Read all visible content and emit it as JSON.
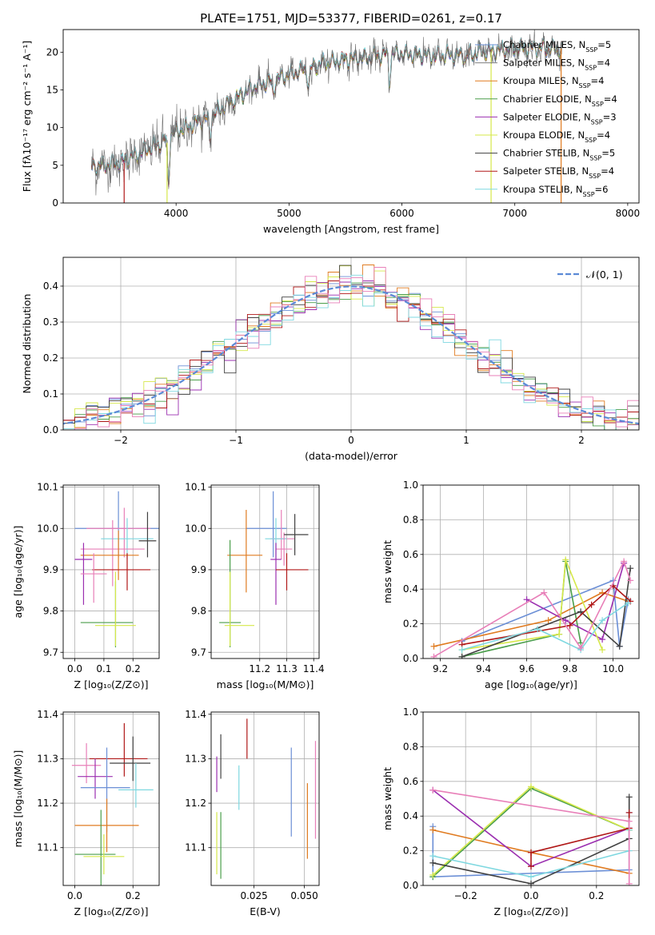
{
  "chart_data": [
    {
      "id": "spectrum",
      "type": "line",
      "title": "PLATE=1751, MJD=53377, FIBERID=0261, z=0.17",
      "xlabel": "wavelength [Angstrom, rest frame]",
      "ylabel": "Flux [fλ10⁻¹⁷ erg cm⁻² s⁻¹ A⁻¹]",
      "xlim": [
        3000,
        8100
      ],
      "ylim": [
        0,
        23
      ],
      "xticks": [
        4000,
        5000,
        6000,
        7000,
        8000
      ],
      "yticks": [
        0,
        5,
        10,
        15,
        20
      ],
      "grid": false,
      "legend_position": "top-right",
      "continuum": [
        [
          3250,
          4.8
        ],
        [
          3500,
          5.3
        ],
        [
          3700,
          6.8
        ],
        [
          3850,
          7.8
        ],
        [
          4000,
          9.5
        ],
        [
          4100,
          10.0
        ],
        [
          4300,
          11.5
        ],
        [
          4500,
          13.5
        ],
        [
          4700,
          15.5
        ],
        [
          4900,
          16.5
        ],
        [
          5100,
          17.5
        ],
        [
          5300,
          18.5
        ],
        [
          5500,
          19.0
        ],
        [
          5700,
          19.3
        ],
        [
          5900,
          19.8
        ],
        [
          6100,
          19.7
        ],
        [
          6300,
          19.5
        ],
        [
          6500,
          19.6
        ],
        [
          6700,
          20.0
        ],
        [
          7000,
          20.5
        ],
        [
          7200,
          20.6
        ],
        [
          7420,
          20.3
        ]
      ],
      "absorption_features": [
        [
          3933,
          6.0
        ],
        [
          4300,
          3.0
        ],
        [
          4861,
          2.0
        ],
        [
          5175,
          2.5
        ],
        [
          5890,
          3.5
        ],
        [
          6563,
          0.8
        ]
      ],
      "series": [
        {
          "name": "Chabrier MILES, N<sub>SSP</sub>=5",
          "color": "#6b8fd6"
        },
        {
          "name": "Salpeter MILES, N<sub>SSP</sub>=4",
          "color": "#7f7f7f"
        },
        {
          "name": "Kroupa MILES, N<sub>SSP</sub>=4",
          "color": "#e07b20"
        },
        {
          "name": "Chabrier ELODIE, N<sub>SSP</sub>=4",
          "color": "#4a9e4a"
        },
        {
          "name": "Salpeter ELODIE, N<sub>SSP</sub>=3",
          "color": "#9b2fb0"
        },
        {
          "name": "Kroupa ELODIE, N<sub>SSP</sub>=4",
          "color": "#d6e84a"
        },
        {
          "name": "Chabrier STELIB, N<sub>SSP</sub>=5",
          "color": "#404040"
        },
        {
          "name": "Salpeter STELIB, N<sub>SSP</sub>=4",
          "color": "#b01818"
        },
        {
          "name": "Kroupa STELIB, N<sub>SSP</sub>=6",
          "color": "#7fd8e0"
        }
      ],
      "edge_lines": [
        {
          "x": 3540,
          "y0": 0,
          "y1": 5.3,
          "color": "#b01818"
        },
        {
          "x": 3920,
          "y0": 0,
          "y1": 8,
          "color": "#d6e84a"
        },
        {
          "x": 6790,
          "y0": 0,
          "y1": 20,
          "color": "#d6e84a"
        },
        {
          "x": 7410,
          "y0": 0,
          "y1": 20.5,
          "color": "#e07b20"
        }
      ]
    },
    {
      "id": "residuals",
      "type": "histogram",
      "xlabel": "(data-model)/error",
      "ylabel": "Normed distribution",
      "xlim": [
        -2.5,
        2.5
      ],
      "ylim": [
        0,
        0.48
      ],
      "xticks": [
        -2,
        -1,
        0,
        1,
        2
      ],
      "yticks": [
        0.0,
        0.1,
        0.2,
        0.3,
        0.4
      ],
      "grid": true,
      "legend_position": "top-right",
      "reference_label": "𝒩(0, 1)",
      "reference_color": "#5b8ad6",
      "bin_width": 0.1,
      "hist_colors": [
        "#6b8fd6",
        "#e07b20",
        "#4a9e4a",
        "#9b2fb0",
        "#d6e84a",
        "#404040",
        "#b01818",
        "#7fd8e0",
        "#e87fb8"
      ]
    },
    {
      "id": "age-vs-Z",
      "type": "errorbar",
      "xlabel": "Z [log₁₀(Z/Z⊙)]",
      "ylabel": "age  [log₁₀(age/yr)]",
      "xlim": [
        -0.04,
        0.29
      ],
      "ylim": [
        9.685,
        10.105
      ],
      "xticks": [
        0.0,
        0.1,
        0.2
      ],
      "yticks": [
        9.7,
        9.8,
        9.9,
        10.0,
        10.1
      ],
      "grid": true,
      "points": [
        {
          "x": 0.15,
          "xerr": [
            0.15,
            0.15
          ],
          "y": 10.0,
          "yerr": [
            0.07,
            0.09
          ],
          "color": "#6b8fd6"
        },
        {
          "x": 0.17,
          "xerr": [
            0.13,
            0.09
          ],
          "y": 10.0,
          "yerr": [
            0.07,
            0.05
          ],
          "color": "#e87fb8"
        },
        {
          "x": 0.18,
          "xerr": [
            0.09,
            0.09
          ],
          "y": 9.975,
          "yerr": [
            0.05,
            0.05
          ],
          "color": "#7fd8e0"
        },
        {
          "x": 0.13,
          "xerr": [
            0.11,
            0.11
          ],
          "y": 9.95,
          "yerr": [
            0.09,
            0.07
          ],
          "color": "#e87fb8"
        },
        {
          "x": 0.15,
          "xerr": [
            0.13,
            0.07
          ],
          "y": 9.935,
          "yerr": [
            0.06,
            0.06
          ],
          "color": "#e07b20"
        },
        {
          "x": 0.03,
          "xerr": [
            0.03,
            0.03
          ],
          "y": 9.925,
          "yerr": [
            0.11,
            0.04
          ],
          "color": "#9b2fb0"
        },
        {
          "x": 0.18,
          "xerr": [
            0.12,
            0.08
          ],
          "y": 9.9,
          "yerr": [
            0.05,
            0.04
          ],
          "color": "#b01818"
        },
        {
          "x": 0.25,
          "xerr": [
            0.03,
            0.03
          ],
          "y": 9.97,
          "yerr": [
            0.04,
            0.07
          ],
          "color": "#404040"
        },
        {
          "x": 0.065,
          "xerr": [
            0.045,
            0.045
          ],
          "y": 9.89,
          "yerr": [
            0.07,
            0.05
          ],
          "color": "#e87fb8"
        },
        {
          "x": 0.14,
          "xerr": [
            0.12,
            0.06
          ],
          "y": 9.772,
          "yerr": [
            0.06,
            0.1
          ],
          "color": "#4a9e4a"
        },
        {
          "x": 0.14,
          "xerr": [
            0.07,
            0.07
          ],
          "y": 9.765,
          "yerr": [
            0.05,
            0.13
          ],
          "color": "#d6e84a"
        }
      ]
    },
    {
      "id": "age-vs-mass",
      "type": "errorbar",
      "xlabel": "mass [log₁₀(M/M⊙)]",
      "ylabel": "",
      "xlim": [
        11.02,
        11.42
      ],
      "ylim": [
        9.685,
        10.105
      ],
      "xticks": [
        11.2,
        11.3,
        11.4
      ],
      "yticks": [
        9.7,
        9.8,
        9.9,
        10.0,
        10.1
      ],
      "grid": true,
      "points": [
        {
          "x": 11.25,
          "xerr": [
            0.1,
            0.05
          ],
          "y": 10.0,
          "yerr": [
            0.07,
            0.09
          ],
          "color": "#6b8fd6"
        },
        {
          "x": 11.28,
          "xerr": [
            0.04,
            0.05
          ],
          "y": 9.975,
          "yerr": [
            0.05,
            0.07
          ],
          "color": "#e87fb8"
        },
        {
          "x": 11.26,
          "xerr": [
            0.04,
            0.04
          ],
          "y": 9.975,
          "yerr": [
            0.05,
            0.05
          ],
          "color": "#7fd8e0"
        },
        {
          "x": 11.29,
          "xerr": [
            0.03,
            0.03
          ],
          "y": 9.95,
          "yerr": [
            0.04,
            0.04
          ],
          "color": "#e87fb8"
        },
        {
          "x": 11.15,
          "xerr": [
            0.07,
            0.06
          ],
          "y": 9.935,
          "yerr": [
            0.09,
            0.11
          ],
          "color": "#e07b20"
        },
        {
          "x": 11.26,
          "xerr": [
            0.02,
            0.02
          ],
          "y": 9.925,
          "yerr": [
            0.11,
            0.04
          ],
          "color": "#9b2fb0"
        },
        {
          "x": 11.3,
          "xerr": [
            0.04,
            0.08
          ],
          "y": 9.9,
          "yerr": [
            0.05,
            0.04
          ],
          "color": "#b01818"
        },
        {
          "x": 11.33,
          "xerr": [
            0.04,
            0.05
          ],
          "y": 9.985,
          "yerr": [
            0.05,
            0.05
          ],
          "color": "#404040"
        },
        {
          "x": 11.09,
          "xerr": [
            0.04,
            0.04
          ],
          "y": 9.772,
          "yerr": [
            0.06,
            0.2
          ],
          "color": "#4a9e4a"
        },
        {
          "x": 11.09,
          "xerr": [
            0.02,
            0.09
          ],
          "y": 9.765,
          "yerr": [
            0.05,
            0.13
          ],
          "color": "#d6e84a"
        }
      ]
    },
    {
      "id": "weights-vs-age",
      "type": "line",
      "xlabel": "age  [log₁₀(age/yr)]",
      "ylabel": "mass weight",
      "xlim": [
        9.12,
        10.12
      ],
      "ylim": [
        0,
        1
      ],
      "xticks": [
        9.2,
        9.4,
        9.6,
        9.8,
        10.0
      ],
      "yticks": [
        0.0,
        0.2,
        0.4,
        0.6,
        0.8,
        1.0
      ],
      "grid": true,
      "series": [
        {
          "color": "#6b8fd6",
          "x": [
            9.3,
            10.0,
            10.03,
            10.07
          ],
          "y": [
            0.1,
            0.45,
            0.07,
            0.34
          ]
        },
        {
          "color": "#e07b20",
          "x": [
            9.17,
            9.7,
            9.95,
            10.07
          ],
          "y": [
            0.07,
            0.22,
            0.38,
            0.33
          ]
        },
        {
          "color": "#4a9e4a",
          "x": [
            9.3,
            9.75,
            9.78,
            9.85
          ],
          "y": [
            0.01,
            0.14,
            0.56,
            0.09
          ]
        },
        {
          "color": "#9b2fb0",
          "x": [
            9.6,
            9.78,
            9.95,
            10.05
          ],
          "y": [
            0.34,
            0.22,
            0.11,
            0.55
          ]
        },
        {
          "color": "#d6e84a",
          "x": [
            9.3,
            9.75,
            9.78,
            9.95
          ],
          "y": [
            0.05,
            0.14,
            0.57,
            0.05
          ]
        },
        {
          "color": "#404040",
          "x": [
            9.3,
            9.85,
            10.03,
            10.08
          ],
          "y": [
            0.01,
            0.27,
            0.07,
            0.52
          ]
        },
        {
          "color": "#b01818",
          "x": [
            9.3,
            9.8,
            9.9,
            10.0,
            10.08
          ],
          "y": [
            0.08,
            0.19,
            0.31,
            0.42,
            0.33
          ]
        },
        {
          "color": "#7fd8e0",
          "x": [
            9.3,
            9.65,
            9.85,
            9.95,
            10.07
          ],
          "y": [
            0.05,
            0.17,
            0.05,
            0.22,
            0.32
          ]
        },
        {
          "color": "#e87fb8",
          "x": [
            9.17,
            9.68,
            9.85,
            10.05,
            10.08
          ],
          "y": [
            0.01,
            0.38,
            0.06,
            0.56,
            0.45
          ]
        }
      ]
    },
    {
      "id": "mass-vs-Z",
      "type": "errorbar",
      "xlabel": "Z [log₁₀(Z/Z⊙)]",
      "ylabel": "mass [log₁₀(M/M⊙)]",
      "xlim": [
        -0.04,
        0.29
      ],
      "ylim": [
        11.015,
        11.405
      ],
      "xticks": [
        0.0,
        0.2
      ],
      "yticks": [
        11.1,
        11.2,
        11.3,
        11.4
      ],
      "grid": true,
      "points": [
        {
          "x": 0.17,
          "xerr": [
            0.12,
            0.08
          ],
          "y": 11.3,
          "yerr": [
            0.04,
            0.08
          ],
          "color": "#b01818"
        },
        {
          "x": 0.2,
          "xerr": [
            0.08,
            0.06
          ],
          "y": 11.29,
          "yerr": [
            0.04,
            0.06
          ],
          "color": "#404040"
        },
        {
          "x": 0.04,
          "xerr": [
            0.05,
            0.05
          ],
          "y": 11.285,
          "yerr": [
            0.04,
            0.05
          ],
          "color": "#e87fb8"
        },
        {
          "x": 0.07,
          "xerr": [
            0.06,
            0.06
          ],
          "y": 11.26,
          "yerr": [
            0.05,
            0.04
          ],
          "color": "#9b2fb0"
        },
        {
          "x": 0.11,
          "xerr": [
            0.09,
            0.08
          ],
          "y": 11.235,
          "yerr": [
            0.1,
            0.09
          ],
          "color": "#6b8fd6"
        },
        {
          "x": 0.21,
          "xerr": [
            0.06,
            0.06
          ],
          "y": 11.23,
          "yerr": [
            0.04,
            0.06
          ],
          "color": "#7fd8e0"
        },
        {
          "x": 0.11,
          "xerr": [
            0.11,
            0.11
          ],
          "y": 11.15,
          "yerr": [
            0.06,
            0.06
          ],
          "color": "#e07b20"
        },
        {
          "x": 0.09,
          "xerr": [
            0.09,
            0.05
          ],
          "y": 11.085,
          "yerr": [
            0.07,
            0.1
          ],
          "color": "#4a9e4a"
        },
        {
          "x": 0.1,
          "xerr": [
            0.07,
            0.07
          ],
          "y": 11.08,
          "yerr": [
            0.04,
            0.05
          ],
          "color": "#d6e84a"
        }
      ]
    },
    {
      "id": "mass-vs-ebv",
      "type": "errorbar",
      "xlabel": "E(B-V)",
      "ylabel": "",
      "xlim": [
        0.0037,
        0.0573
      ],
      "ylim": [
        11.015,
        11.405
      ],
      "xticks": [
        0.025,
        0.05
      ],
      "yticks": [
        11.1,
        11.2,
        11.3,
        11.4
      ],
      "grid": true,
      "points": [
        {
          "x": 0.0065,
          "y": 11.265,
          "yerr": [
            0.04,
            0.04
          ],
          "color": "#9b2fb0"
        },
        {
          "x": 0.0065,
          "y": 11.11,
          "yerr": [
            0.07,
            0.07
          ],
          "color": "#d6e84a"
        },
        {
          "x": 0.0085,
          "y": 11.305,
          "yerr": [
            0.05,
            0.05
          ],
          "color": "#404040"
        },
        {
          "x": 0.0085,
          "y": 11.1,
          "yerr": [
            0.07,
            0.08
          ],
          "color": "#4a9e4a"
        },
        {
          "x": 0.0175,
          "y": 11.235,
          "yerr": [
            0.05,
            0.05
          ],
          "color": "#7fd8e0"
        },
        {
          "x": 0.0215,
          "y": 11.34,
          "yerr": [
            0.04,
            0.05
          ],
          "color": "#b01818"
        },
        {
          "x": 0.0435,
          "y": 11.225,
          "yerr": [
            0.1,
            0.1
          ],
          "color": "#6b8fd6"
        },
        {
          "x": 0.0515,
          "y": 11.155,
          "yerr": [
            0.08,
            0.09
          ],
          "color": "#e07b20"
        },
        {
          "x": 0.0555,
          "y": 11.23,
          "yerr": [
            0.11,
            0.11
          ],
          "color": "#e87fb8"
        }
      ]
    },
    {
      "id": "weights-vs-Z",
      "type": "line",
      "xlabel": "Z [log₁₀(Z/Z⊙)]",
      "ylabel": "mass weight",
      "xlim": [
        -0.33,
        0.33
      ],
      "ylim": [
        0,
        1
      ],
      "xticks": [
        -0.2,
        0.0,
        0.2
      ],
      "yticks": [
        0.0,
        0.2,
        0.4,
        0.6,
        0.8,
        1.0
      ],
      "grid": true,
      "series": [
        {
          "color": "#6b8fd6",
          "x": [
            -0.3,
            -0.3,
            0.3,
            0.3
          ],
          "y": [
            0.34,
            0.05,
            0.09,
            0.42
          ]
        },
        {
          "color": "#e07b20",
          "x": [
            -0.3,
            0.0,
            0.3
          ],
          "y": [
            0.32,
            0.19,
            0.07
          ]
        },
        {
          "color": "#4a9e4a",
          "x": [
            -0.3,
            0.0,
            0.3
          ],
          "y": [
            0.05,
            0.56,
            0.32
          ]
        },
        {
          "color": "#9b2fb0",
          "x": [
            -0.3,
            0.0,
            0.3
          ],
          "y": [
            0.55,
            0.11,
            0.33
          ]
        },
        {
          "color": "#d6e84a",
          "x": [
            -0.3,
            0.0,
            0.3
          ],
          "y": [
            0.06,
            0.57,
            0.32
          ]
        },
        {
          "color": "#404040",
          "x": [
            -0.3,
            0.0,
            0.3,
            0.3
          ],
          "y": [
            0.13,
            0.01,
            0.27,
            0.51
          ]
        },
        {
          "color": "#b01818",
          "x": [
            0.0,
            0.0,
            0.3,
            0.3
          ],
          "y": [
            0.11,
            0.19,
            0.33,
            0.42
          ]
        },
        {
          "color": "#7fd8e0",
          "x": [
            -0.3,
            0.0,
            0.3,
            0.3
          ],
          "y": [
            0.17,
            0.05,
            0.2,
            0.32
          ]
        },
        {
          "color": "#e87fb8",
          "x": [
            -0.3,
            0.3,
            0.3
          ],
          "y": [
            0.55,
            0.37,
            0.01
          ]
        }
      ]
    }
  ]
}
